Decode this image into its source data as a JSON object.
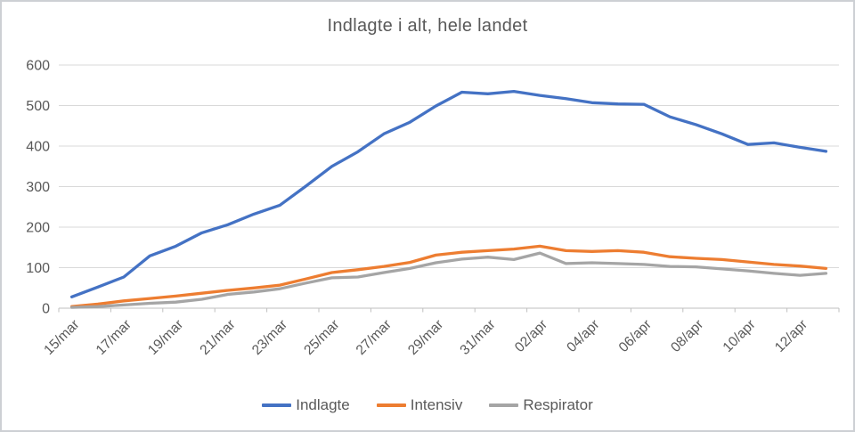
{
  "chart_data": {
    "type": "line",
    "title": "Indlagte i alt, hele landet",
    "dates": [
      "15/mar",
      "16/mar",
      "17/mar",
      "18/mar",
      "19/mar",
      "20/mar",
      "21/mar",
      "22/mar",
      "23/mar",
      "24/mar",
      "25/mar",
      "26/mar",
      "27/mar",
      "28/mar",
      "29/mar",
      "30/mar",
      "31/mar",
      "01/apr",
      "02/apr",
      "03/apr",
      "04/apr",
      "05/apr",
      "06/apr",
      "07/apr",
      "08/apr",
      "09/apr",
      "10/apr",
      "11/apr",
      "12/apr",
      "13/apr"
    ],
    "x_tick_labels": [
      "15/mar",
      "17/mar",
      "19/mar",
      "21/mar",
      "23/mar",
      "25/mar",
      "27/mar",
      "29/mar",
      "31/mar",
      "02/apr",
      "04/apr",
      "06/apr",
      "08/apr",
      "10/apr",
      "12/apr"
    ],
    "series": [
      {
        "name": "Indlagte",
        "color": "#4472C4",
        "values": [
          28,
          52,
          77,
          129,
          153,
          186,
          206,
          232,
          254,
          301,
          350,
          386,
          430,
          459,
          499,
          533,
          529,
          535,
          525,
          517,
          507,
          504,
          503,
          472,
          453,
          430,
          404,
          408,
          397,
          387
        ]
      },
      {
        "name": "Intensiv",
        "color": "#ED7D31",
        "values": [
          4,
          10,
          18,
          24,
          30,
          37,
          44,
          50,
          57,
          72,
          88,
          95,
          103,
          113,
          131,
          138,
          142,
          146,
          153,
          142,
          140,
          142,
          138,
          127,
          123,
          120,
          114,
          108,
          104,
          98
        ]
      },
      {
        "name": "Respirator",
        "color": "#A5A5A5",
        "values": [
          2,
          4,
          8,
          12,
          15,
          22,
          34,
          40,
          48,
          62,
          75,
          77,
          88,
          98,
          112,
          121,
          126,
          120,
          136,
          110,
          112,
          110,
          108,
          103,
          102,
          97,
          92,
          86,
          81,
          86
        ]
      }
    ],
    "ylim": [
      0,
      600
    ],
    "y_ticks": [
      0,
      100,
      200,
      300,
      400,
      500,
      600
    ],
    "grid": true,
    "legend_position": "bottom"
  },
  "colors": {
    "gridline": "#D9D9D9",
    "axis_line": "#BFBFBF",
    "tick_text": "#595959",
    "title_text": "#595959",
    "background": "#FFFFFF"
  }
}
